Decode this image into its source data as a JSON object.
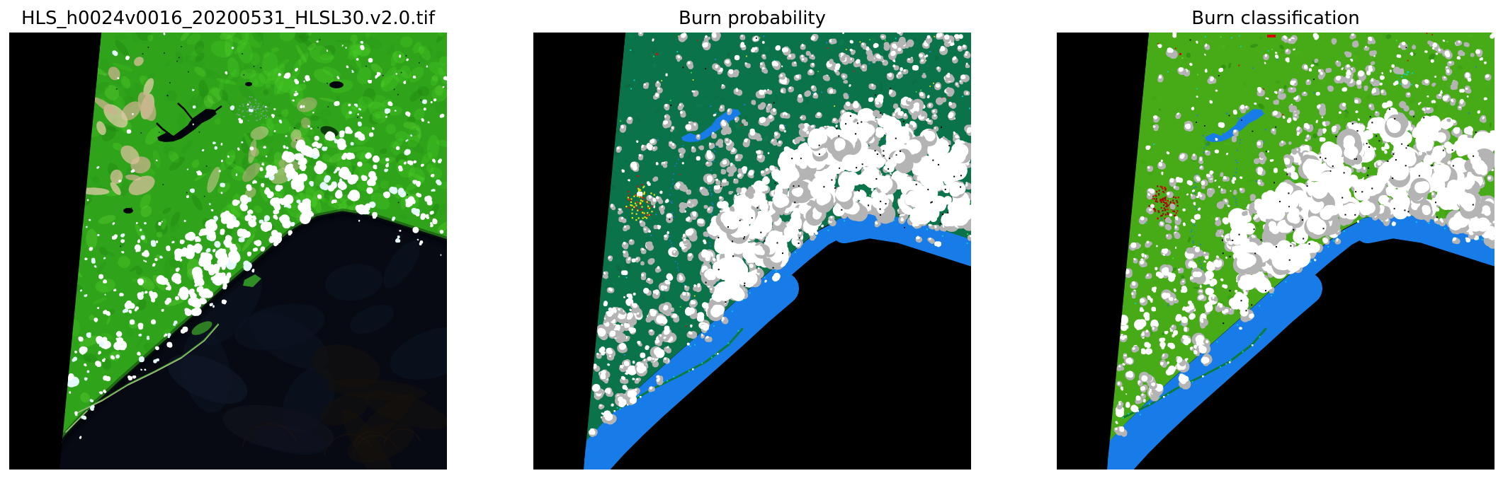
{
  "figure": {
    "background": "#ffffff",
    "title_color": "#000000",
    "layout": "1 row x 3 square image subplots, axes off",
    "panels": [
      {
        "id": "rgb-composite",
        "title": "HLS_h0024v0016_20200531_HLSL30.v2.0.tif",
        "kind": "false-color satellite composite",
        "palette": {
          "nodata": "#000000",
          "vegetation": "#2fa31a",
          "vegetation_bright": "#4bd028",
          "vegetation_dark": "#1b7e0f",
          "bare_ground_tan": "#d9c09c",
          "urban_speckle": "#97a0bd",
          "inland_water": "#01040a",
          "ocean": "#070a13",
          "ocean_patch": "#0c1424",
          "cloud": "#ffffff",
          "cloud_tint": "#e4f9fc",
          "spit_sand": "#a9bd85",
          "spit_green": "#3fa52f"
        }
      },
      {
        "id": "burn-probability",
        "title": "Burn probability",
        "kind": "burn probability raster map",
        "palette": {
          "nodata": "#000000",
          "unburned_background": "#0b7349",
          "water": "#187ce8",
          "cloud": "#ffffff",
          "cloud_edge_gray": "#b4b4b4",
          "burn_high_red": "#d01010",
          "burn_mid_yellow": "#e8e422",
          "speckle_cyan": "#00dcdc",
          "speckle_green": "#3ae03a",
          "speckle_blue": "#2f80e8",
          "shore_green": "#0c7a3a"
        }
      },
      {
        "id": "burn-classification",
        "title": "Burn classification",
        "kind": "burn classification raster map",
        "palette": {
          "nodata": "#000000",
          "unburned_vegetation": "#46ab16",
          "water": "#187ce8",
          "cloud": "#ffffff",
          "cloud_edge_gray": "#b4b4b4",
          "burned_red": "#dd0000",
          "speckle_cyan": "#00dcdc",
          "speckle_blue": "#2b6fe0",
          "vegetation_dark": "#1c7c10",
          "shore_green": "#0c7a3a"
        }
      }
    ]
  },
  "chart_data": {
    "type": "image",
    "layout": "1x3",
    "axes": "off",
    "panels": [
      {
        "title": "HLS_h0024v0016_20200531_HLSL30.v2.0.tif",
        "description": "False-color HLS Landsat-30 granule of a coastal region: bright green vegetated land in upper two thirds, tan bare-ground patches near the slanted no-data swath edge, a black branching reservoir near the upper center, a field of small white cumulus clouds concentrated along the coast, thin sandy barrier spits, and a nearly black ocean in the lower right. A black no-data wedge fills the left edge.",
        "classes": [
          {
            "label": "no data",
            "color": "#000000"
          },
          {
            "label": "vegetation",
            "color": "#2fa31a"
          },
          {
            "label": "bare ground",
            "color": "#d9c09c"
          },
          {
            "label": "water (dark)",
            "color": "#070a13"
          },
          {
            "label": "cloud",
            "color": "#ffffff"
          }
        ]
      },
      {
        "title": "Burn probability",
        "description": "Same footprint rendered as a burn-probability map: dark sea-green background (low probability), white cloud mask blobs with gray fringes, a red/yellow high-probability cluster at upper left of center, bright blue water (reservoir, rivers, wide coastal band), scattered cyan/yellow/red speckles, black ocean and black no-data wedge.",
        "classes": [
          {
            "label": "no data / ocean",
            "color": "#000000"
          },
          {
            "label": "low burn probability",
            "color": "#0b7349"
          },
          {
            "label": "high burn probability",
            "color": "#d01010"
          },
          {
            "label": "water",
            "color": "#187ce8"
          },
          {
            "label": "cloud",
            "color": "#ffffff"
          },
          {
            "label": "cloud edge",
            "color": "#b4b4b4"
          }
        ]
      },
      {
        "title": "Burn classification",
        "description": "Same footprint rendered as a classified map: bright green unburned vegetation, solid red burned-area cluster, white cloud mask with gray fringes, bright blue water (reservoir, rivers, coastal band), cyan and blue speckles, black ocean and black no-data wedge.",
        "classes": [
          {
            "label": "no data / ocean",
            "color": "#000000"
          },
          {
            "label": "unburned vegetation",
            "color": "#46ab16"
          },
          {
            "label": "burned",
            "color": "#dd0000"
          },
          {
            "label": "water",
            "color": "#187ce8"
          },
          {
            "label": "cloud",
            "color": "#ffffff"
          },
          {
            "label": "cloud edge",
            "color": "#b4b4b4"
          }
        ]
      }
    ]
  }
}
